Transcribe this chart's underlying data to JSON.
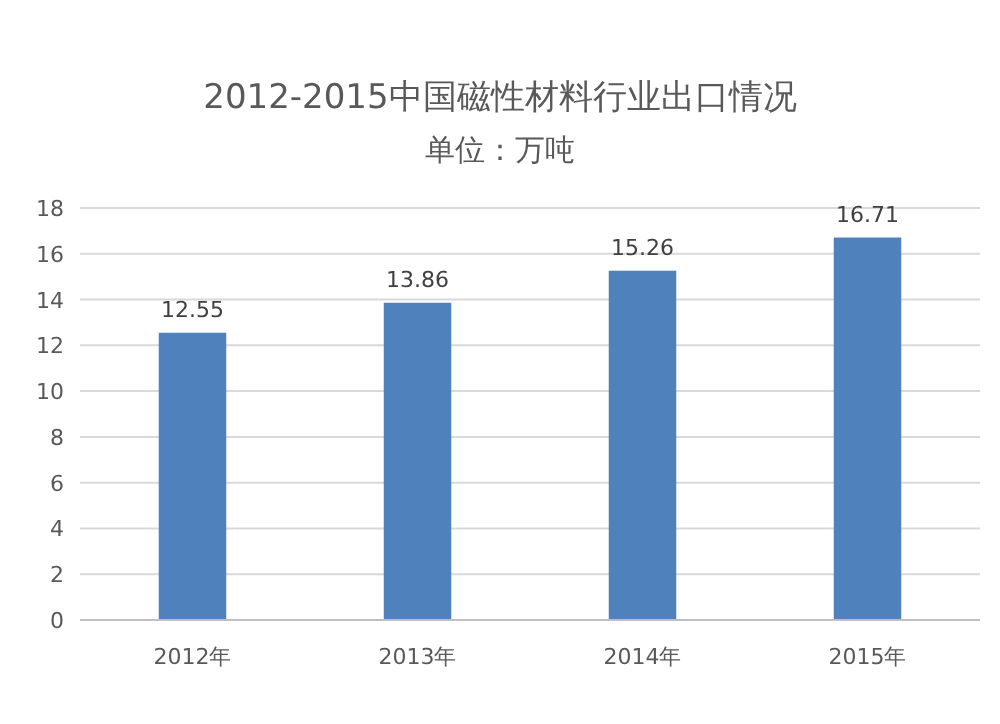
{
  "chart_data": {
    "type": "bar",
    "title": "2012-2015中国磁性材料行业出口情况",
    "subtitle": "单位：万吨",
    "categories": [
      "2012年",
      "2013年",
      "2014年",
      "2015年"
    ],
    "values": [
      12.55,
      13.86,
      15.26,
      16.71
    ],
    "color": "#4f81bd",
    "ylim": [
      0,
      18
    ],
    "yticks": [
      0,
      2,
      4,
      6,
      8,
      10,
      12,
      14,
      16,
      18
    ],
    "grid": "y",
    "data_labels": true
  }
}
